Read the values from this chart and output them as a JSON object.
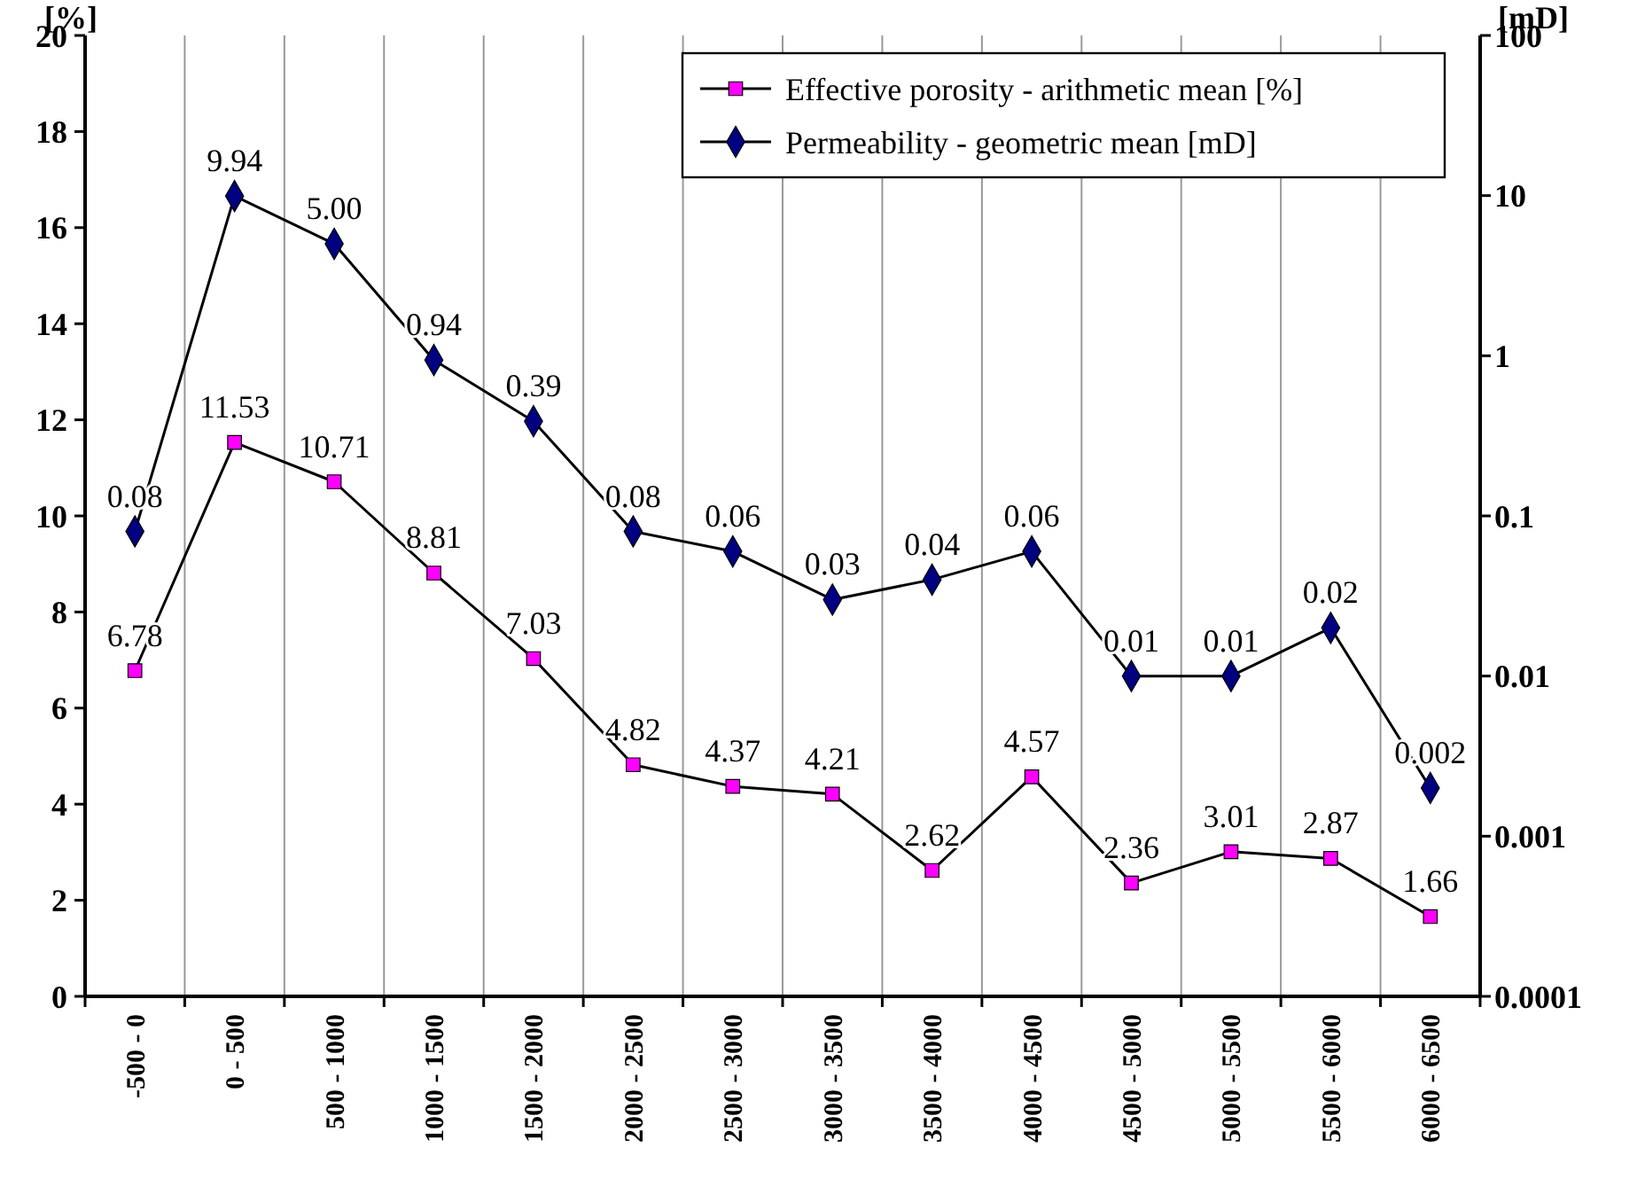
{
  "chart_data": {
    "type": "line",
    "ylabel": "[%]",
    "y2label": "[mD]",
    "categories": [
      "-500 - 0",
      "0 - 500",
      "500 - 1000",
      "1000 - 1500",
      "1500 - 2000",
      "2000 - 2500",
      "2500 - 3000",
      "3000 - 3500",
      "3500 - 4000",
      "4000 - 4500",
      "4500 - 5000",
      "5000 - 5500",
      "5500 - 6000",
      "6000 - 6500"
    ],
    "series": [
      {
        "name": "Effective porosity -  arithmetic mean [%]",
        "color": "#ff00ff",
        "marker": "square",
        "values": [
          6.78,
          11.53,
          10.71,
          8.81,
          7.03,
          4.82,
          4.37,
          4.21,
          2.62,
          4.57,
          2.36,
          3.01,
          2.87,
          1.66
        ],
        "value_labels": [
          "6.78",
          "11.53",
          "10.71",
          "8.81",
          "7.03",
          "4.82",
          "4.37",
          "4.21",
          "2.62",
          "4.57",
          "2.36",
          "3.01",
          "2.87",
          "1.66"
        ]
      },
      {
        "name": "Permeability -  geometric mean [mD]",
        "color": "#000080",
        "marker": "diamond",
        "axis": "y2",
        "values": [
          0.08,
          9.94,
          5.0,
          0.94,
          0.39,
          0.08,
          0.06,
          0.03,
          0.04,
          0.06,
          0.01,
          0.01,
          0.02,
          0.002
        ],
        "value_labels": [
          "0.08",
          "9.94",
          "5.00",
          "0.94",
          "0.39",
          "0.08",
          "0.06",
          "0.03",
          "0.04",
          "0.06",
          "0.01",
          "0.01",
          "0.02",
          "0.002"
        ]
      }
    ],
    "ylim": [
      0,
      20
    ],
    "yticks": [
      0,
      2,
      4,
      6,
      8,
      10,
      12,
      14,
      16,
      18,
      20
    ],
    "y2lim": [
      0.0001,
      100
    ],
    "y2ticks": [
      0.0001,
      0.001,
      0.01,
      0.1,
      1,
      10,
      100
    ],
    "log": "y2",
    "grid": "x",
    "legend": "top right"
  }
}
